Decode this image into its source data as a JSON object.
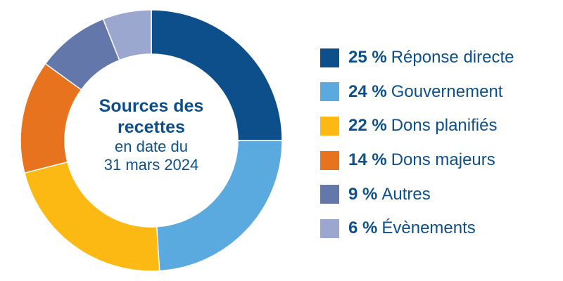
{
  "chart_data": {
    "type": "pie",
    "title": "Sources des recettes",
    "subtitle": "en date du 31 mars 2024",
    "legend_position": "right",
    "slices": [
      {
        "label": "Réponse directe",
        "value": 25,
        "value_label": "25 %",
        "color": "#0d4f8b"
      },
      {
        "label": "Gouvernement",
        "value": 24,
        "value_label": "24 %",
        "color": "#5aaae0"
      },
      {
        "label": "Dons planifiés",
        "value": 22,
        "value_label": "22 %",
        "color": "#fdb913"
      },
      {
        "label": "Dons majeurs",
        "value": 14,
        "value_label": "14 %",
        "color": "#e8731f"
      },
      {
        "label": "Autres",
        "value": 9,
        "value_label": "9 %",
        "color": "#6377ab"
      },
      {
        "label": "Évènements",
        "value": 6,
        "value_label": "6 %",
        "color": "#9ba7cf"
      }
    ]
  },
  "center": {
    "title_line1": "Sources des",
    "title_line2": "recettes",
    "sub_line1": "en date du",
    "sub_line2": "31 mars 2024"
  }
}
